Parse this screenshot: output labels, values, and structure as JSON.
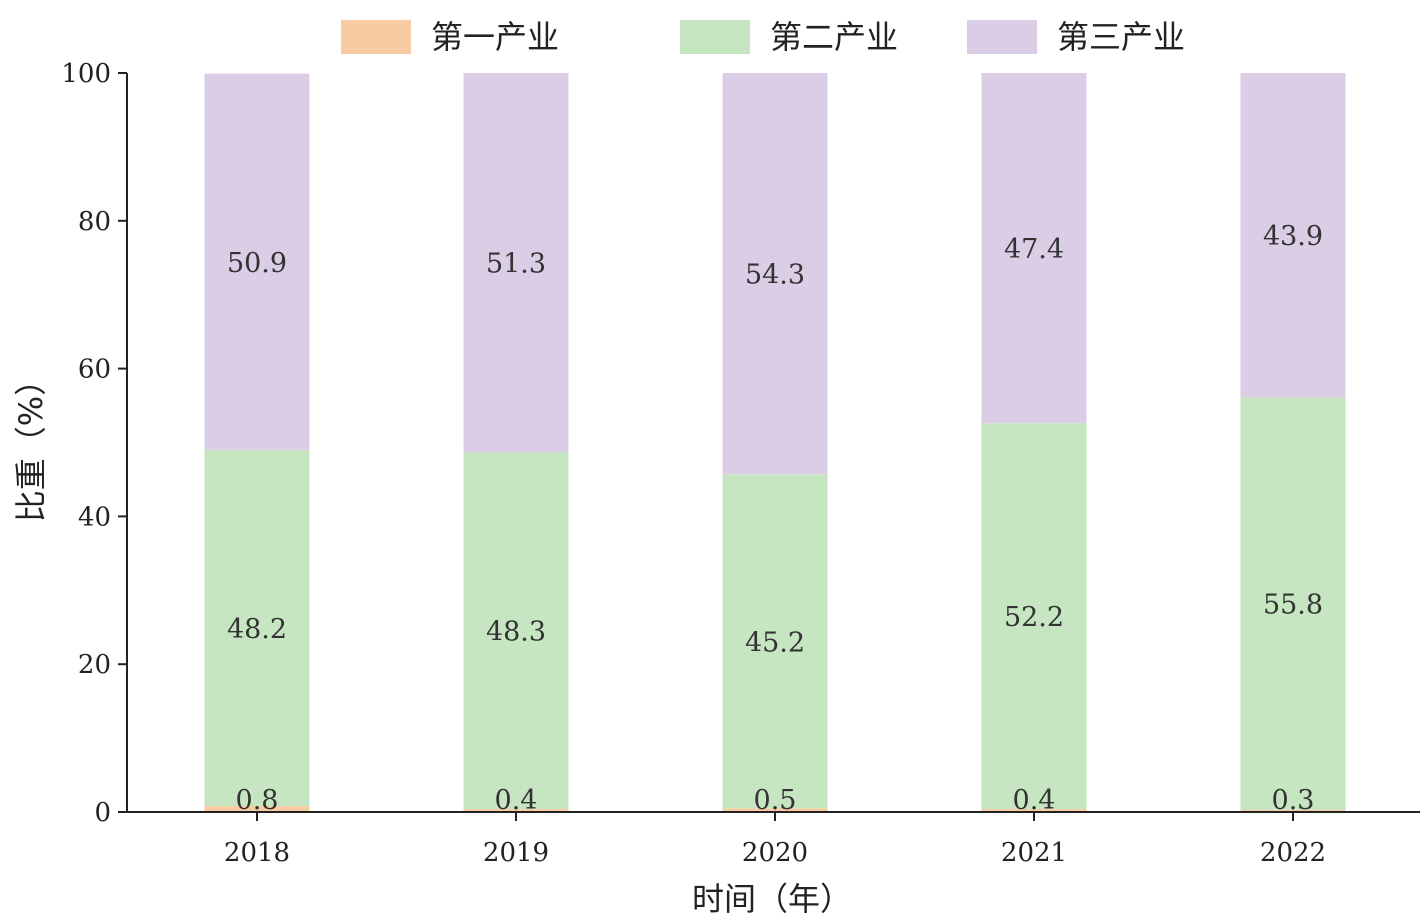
{
  "chart_data": {
    "type": "bar",
    "stacked": true,
    "categories": [
      "2018",
      "2019",
      "2020",
      "2021",
      "2022"
    ],
    "series": [
      {
        "name": "第一产业",
        "values": [
          0.8,
          0.4,
          0.5,
          0.4,
          0.3
        ],
        "labels": [
          "0.8",
          "0.4",
          "0.5",
          "0.4",
          "0.3"
        ],
        "color": "#f9cba2"
      },
      {
        "name": "第二产业",
        "values": [
          48.2,
          48.3,
          45.2,
          52.2,
          55.8
        ],
        "labels": [
          "48.2",
          "48.3",
          "45.2",
          "52.2",
          "55.8"
        ],
        "color": "#c5e6c1"
      },
      {
        "name": "第三产业",
        "values": [
          50.9,
          51.3,
          54.3,
          47.4,
          43.9
        ],
        "labels": [
          "50.9",
          "51.3",
          "54.3",
          "47.4",
          "43.9"
        ],
        "color": "#dccde6"
      }
    ],
    "xlabel": "时间（年）",
    "ylabel": "比重（%）",
    "ylim": [
      0,
      100
    ],
    "yticks": [
      "0",
      "20",
      "40",
      "60",
      "80",
      "100"
    ],
    "grid": false,
    "legend_position": "top-center"
  }
}
